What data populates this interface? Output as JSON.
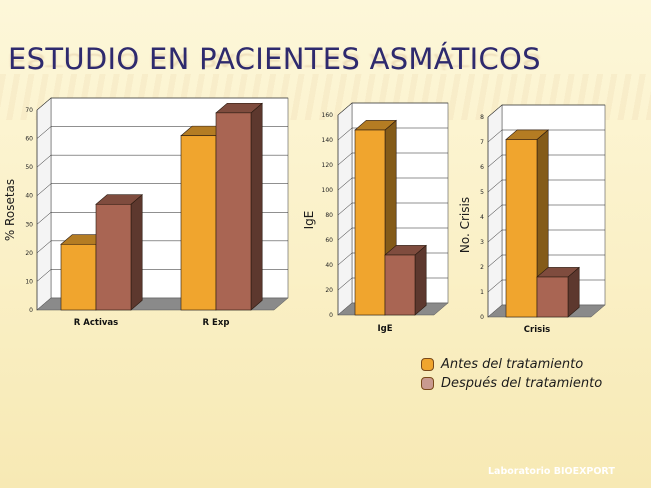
{
  "slide": {
    "title": "ESTUDIO EN PACIENTES ASMÁTICOS",
    "footer": "Laboratorio BIOEXPORT"
  },
  "colors": {
    "before": "#f0a52e",
    "after": "#a96553",
    "before_legend": "#f0a52e",
    "after_legend": "#c99a90",
    "title": "#2e2a6e"
  },
  "legend": [
    {
      "label": "Antes del tratamiento",
      "color_key": "before_legend"
    },
    {
      "label": "Después del tratamiento",
      "color_key": "after_legend"
    }
  ],
  "chart_data": [
    {
      "type": "bar",
      "categories": [
        "R Activas",
        "R Exp"
      ],
      "series": [
        {
          "name": "Antes del tratamiento",
          "values": [
            23,
            61
          ]
        },
        {
          "name": "Después del tratamiento",
          "values": [
            37,
            69
          ]
        }
      ],
      "ylabel": "% Rosetas",
      "xlabel": "",
      "ylim": [
        0,
        70
      ],
      "yticks": [
        "0",
        "10",
        "20",
        "30",
        "40",
        "50",
        "60",
        "70"
      ],
      "grid": true,
      "style": "3d"
    },
    {
      "type": "bar",
      "categories": [
        "IgE"
      ],
      "series": [
        {
          "name": "Antes del tratamiento",
          "values": [
            148
          ]
        },
        {
          "name": "Después del tratamiento",
          "values": [
            48
          ]
        }
      ],
      "ylabel": "IgE",
      "xlabel": "",
      "ylim": [
        0,
        160
      ],
      "yticks": [
        "0",
        "20",
        "40",
        "60",
        "80",
        "100",
        "120",
        "140",
        "160"
      ],
      "grid": true,
      "style": "3d"
    },
    {
      "type": "bar",
      "categories": [
        "Crisis"
      ],
      "series": [
        {
          "name": "Antes del tratamiento",
          "values": [
            7.1
          ]
        },
        {
          "name": "Después del tratamiento",
          "values": [
            1.6
          ]
        }
      ],
      "ylabel": "No. Crisis",
      "xlabel": "",
      "ylim": [
        0,
        8
      ],
      "yticks": [
        "0",
        "1",
        "2",
        "3",
        "4",
        "5",
        "6",
        "7",
        "8"
      ],
      "grid": true,
      "style": "3d"
    }
  ]
}
